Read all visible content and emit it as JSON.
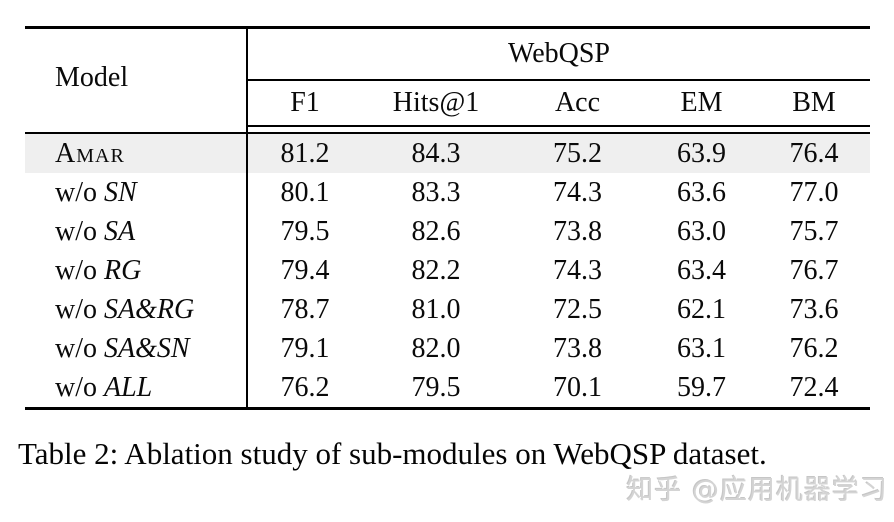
{
  "table": {
    "model_header": "Model",
    "group_header": "WebQSP",
    "columns": [
      "F1",
      "Hits@1",
      "Acc",
      "EM",
      "BM"
    ],
    "rows": [
      {
        "prefix": "",
        "label": "Amar",
        "style": "smallcaps",
        "highlight": true,
        "values": [
          "81.2",
          "84.3",
          "75.2",
          "63.9",
          "76.4"
        ],
        "bold": [
          true,
          true,
          true,
          true,
          false
        ]
      },
      {
        "prefix": "w/o ",
        "label": "SN",
        "style": "italic",
        "highlight": false,
        "values": [
          "80.1",
          "83.3",
          "74.3",
          "63.6",
          "77.0"
        ],
        "bold": [
          false,
          false,
          false,
          false,
          true
        ]
      },
      {
        "prefix": "w/o ",
        "label": "SA",
        "style": "italic",
        "highlight": false,
        "values": [
          "79.5",
          "82.6",
          "73.8",
          "63.0",
          "75.7"
        ],
        "bold": [
          false,
          false,
          false,
          false,
          false
        ]
      },
      {
        "prefix": "w/o ",
        "label": "RG",
        "style": "italic",
        "highlight": false,
        "values": [
          "79.4",
          "82.2",
          "74.3",
          "63.4",
          "76.7"
        ],
        "bold": [
          false,
          false,
          false,
          false,
          false
        ]
      },
      {
        "prefix": "w/o ",
        "label": "SA&RG",
        "style": "italic",
        "highlight": false,
        "values": [
          "78.7",
          "81.0",
          "72.5",
          "62.1",
          "73.6"
        ],
        "bold": [
          false,
          false,
          false,
          false,
          false
        ]
      },
      {
        "prefix": "w/o ",
        "label": "SA&SN",
        "style": "italic",
        "highlight": false,
        "values": [
          "79.1",
          "82.0",
          "73.8",
          "63.1",
          "76.2"
        ],
        "bold": [
          false,
          false,
          false,
          false,
          false
        ]
      },
      {
        "prefix": "w/o ",
        "label": "ALL",
        "style": "italic",
        "highlight": false,
        "values": [
          "76.2",
          "79.5",
          "70.1",
          "59.7",
          "72.4"
        ],
        "bold": [
          false,
          false,
          false,
          false,
          false
        ]
      }
    ],
    "caption": "Table 2: Ablation study of sub-modules on WebQSP dataset."
  },
  "watermark": "知乎 @应用机器学习",
  "colors": {
    "highlight_row": "#efefef",
    "rule": "#000000",
    "watermark_text": "#d4d4d4"
  }
}
